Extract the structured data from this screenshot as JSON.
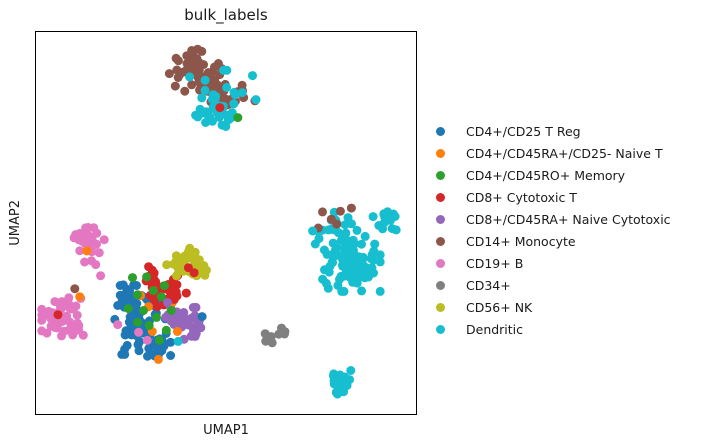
{
  "chart_data": {
    "type": "scatter",
    "title": "bulk_labels",
    "xlabel": "UMAP1",
    "ylabel": "UMAP2",
    "axis_ticks": "none (scanpy-style UMAP embedding, no tick labels)",
    "legend_position": "right, outside axes",
    "point_radius_px": 4.5,
    "coordinate_space": "fractions of the axes box, x right / y down, 0-1",
    "clusters": [
      {
        "label": "CD4+/CD25 T Reg",
        "color": "#1f77b4",
        "seed": 11,
        "blobs": [
          {
            "cx": 0.275,
            "cy": 0.753,
            "rx": 0.058,
            "ry": 0.078,
            "n": 60
          },
          {
            "cx": 0.241,
            "cy": 0.69,
            "rx": 0.034,
            "ry": 0.029,
            "n": 14
          },
          {
            "cx": 0.311,
            "cy": 0.828,
            "rx": 0.037,
            "ry": 0.029,
            "n": 14
          }
        ],
        "points": [
          [
            0.437,
            0.745
          ]
        ]
      },
      {
        "label": "CD4+/CD45RA+/CD25- Naive T",
        "color": "#ff7f0e",
        "seed": 12,
        "blobs": [],
        "points": [
          [
            0.134,
            0.573
          ],
          [
            0.115,
            0.693
          ],
          [
            0.306,
            0.784
          ],
          [
            0.372,
            0.784
          ],
          [
            0.322,
            0.857
          ],
          [
            0.275,
            0.69
          ],
          [
            0.359,
            0.708
          ],
          [
            0.296,
            0.719
          ]
        ]
      },
      {
        "label": "CD4+/CD45RO+ Memory",
        "color": "#2ca02c",
        "seed": 13,
        "blobs": [],
        "points": [
          [
            0.254,
            0.643
          ],
          [
            0.291,
            0.641
          ],
          [
            0.267,
            0.688
          ],
          [
            0.309,
            0.677
          ],
          [
            0.33,
            0.693
          ],
          [
            0.283,
            0.729
          ],
          [
            0.317,
            0.747
          ],
          [
            0.298,
            0.768
          ],
          [
            0.343,
            0.781
          ],
          [
            0.267,
            0.76
          ],
          [
            0.325,
            0.807
          ],
          [
            0.356,
            0.729
          ],
          [
            0.338,
            0.664
          ],
          [
            0.531,
            0.224
          ],
          [
            0.243,
            0.724
          ]
        ]
      },
      {
        "label": "CD8+ Cytotoxic T",
        "color": "#d62728",
        "seed": 14,
        "blobs": [
          {
            "cx": 0.343,
            "cy": 0.669,
            "rx": 0.045,
            "ry": 0.039,
            "n": 30
          },
          {
            "cx": 0.304,
            "cy": 0.633,
            "rx": 0.021,
            "ry": 0.016,
            "n": 5
          }
        ],
        "points": [
          [
            0.401,
            0.617
          ],
          [
            0.416,
            0.63
          ],
          [
            0.484,
            0.198
          ],
          [
            0.058,
            0.74
          ],
          [
            0.364,
            0.7
          ],
          [
            0.319,
            0.719
          ]
        ]
      },
      {
        "label": "CD8+/CD45RA+ Naive Cytotoxic",
        "color": "#9467bd",
        "seed": 15,
        "blobs": [
          {
            "cx": 0.385,
            "cy": 0.753,
            "rx": 0.039,
            "ry": 0.044,
            "n": 28
          },
          {
            "cx": 0.416,
            "cy": 0.789,
            "rx": 0.024,
            "ry": 0.018,
            "n": 7
          }
        ],
        "points": [
          [
            0.346,
            0.708
          ],
          [
            0.421,
            0.721
          ]
        ]
      },
      {
        "label": "CD14+ Monocyte",
        "color": "#8c564b",
        "seed": 16,
        "blobs": [
          {
            "cx": 0.421,
            "cy": 0.102,
            "rx": 0.06,
            "ry": 0.052,
            "n": 55
          },
          {
            "cx": 0.503,
            "cy": 0.164,
            "rx": 0.052,
            "ry": 0.039,
            "n": 32
          }
        ],
        "points": [
          [
            0.754,
            0.471
          ],
          [
            0.777,
            0.49
          ],
          [
            0.743,
            0.513
          ],
          [
            0.801,
            0.469
          ],
          [
            0.791,
            0.503
          ],
          [
            0.83,
            0.461
          ],
          [
            0.102,
            0.672
          ],
          [
            0.576,
            0.18
          ]
        ]
      },
      {
        "label": "CD19+ B",
        "color": "#e377c2",
        "seed": 17,
        "blobs": [
          {
            "cx": 0.134,
            "cy": 0.549,
            "rx": 0.039,
            "ry": 0.044,
            "n": 28
          },
          {
            "cx": 0.063,
            "cy": 0.742,
            "rx": 0.047,
            "ry": 0.06,
            "n": 42
          },
          {
            "cx": 0.107,
            "cy": 0.779,
            "rx": 0.024,
            "ry": 0.023,
            "n": 8
          }
        ],
        "points": [
          [
            0.157,
            0.609
          ],
          [
            0.17,
            0.638
          ],
          [
            0.128,
            0.602
          ],
          [
            0.215,
            0.766
          ],
          [
            0.27,
            0.786
          ],
          [
            0.293,
            0.807
          ]
        ]
      },
      {
        "label": "CD34+",
        "color": "#7f7f7f",
        "seed": 18,
        "blobs": [
          {
            "cx": 0.62,
            "cy": 0.802,
            "rx": 0.016,
            "ry": 0.016,
            "n": 7
          },
          {
            "cx": 0.647,
            "cy": 0.784,
            "rx": 0.016,
            "ry": 0.013,
            "n": 5
          }
        ],
        "points": []
      },
      {
        "label": "CD56+ NK",
        "color": "#bcbd22",
        "seed": 19,
        "blobs": [
          {
            "cx": 0.393,
            "cy": 0.602,
            "rx": 0.042,
            "ry": 0.031,
            "n": 28
          },
          {
            "cx": 0.424,
            "cy": 0.633,
            "rx": 0.021,
            "ry": 0.021,
            "n": 8
          }
        ],
        "points": []
      },
      {
        "label": "Dendritic",
        "color": "#17becf",
        "seed": 20,
        "blobs": [
          {
            "cx": 0.469,
            "cy": 0.214,
            "rx": 0.052,
            "ry": 0.034,
            "n": 26
          },
          {
            "cx": 0.487,
            "cy": 0.161,
            "rx": 0.071,
            "ry": 0.052,
            "n": 16
          },
          {
            "cx": 0.83,
            "cy": 0.594,
            "rx": 0.065,
            "ry": 0.073,
            "n": 95
          },
          {
            "cx": 0.914,
            "cy": 0.492,
            "rx": 0.029,
            "ry": 0.023,
            "n": 12
          },
          {
            "cx": 0.798,
            "cy": 0.919,
            "rx": 0.026,
            "ry": 0.036,
            "n": 22
          },
          {
            "cx": 0.788,
            "cy": 0.508,
            "rx": 0.037,
            "ry": 0.031,
            "n": 14
          }
        ],
        "points": [
          [
            0.374,
            0.81
          ],
          [
            0.728,
            0.521
          ],
          [
            0.735,
            0.555
          ],
          [
            0.948,
            0.518
          ],
          [
            0.579,
            0.177
          ]
        ]
      }
    ]
  }
}
